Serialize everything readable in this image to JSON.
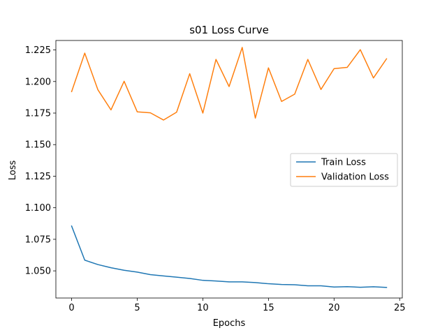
{
  "chart_data": {
    "type": "line",
    "title": "s01 Loss Curve",
    "xlabel": "Epochs",
    "ylabel": "Loss",
    "xlim": [
      -1.2,
      25.2
    ],
    "ylim": [
      1.0285,
      1.2325
    ],
    "x_ticks": [
      0,
      5,
      10,
      15,
      20,
      25
    ],
    "y_ticks": [
      1.05,
      1.075,
      1.1,
      1.125,
      1.15,
      1.175,
      1.2,
      1.225
    ],
    "y_tick_labels": [
      "1.050",
      "1.075",
      "1.100",
      "1.125",
      "1.150",
      "1.175",
      "1.200",
      "1.225"
    ],
    "grid": false,
    "legend_position": "center-right",
    "x": [
      0,
      1,
      2,
      3,
      4,
      5,
      6,
      7,
      8,
      9,
      10,
      11,
      12,
      13,
      14,
      15,
      16,
      17,
      18,
      19,
      20,
      21,
      22,
      23,
      24
    ],
    "series": [
      {
        "name": "Train Loss",
        "color": "#1f77b4",
        "values": [
          1.0855,
          1.0585,
          1.055,
          1.0525,
          1.0505,
          1.049,
          1.047,
          1.046,
          1.045,
          1.044,
          1.0425,
          1.042,
          1.0413,
          1.0413,
          1.0407,
          1.0398,
          1.0392,
          1.039,
          1.0382,
          1.0382,
          1.0372,
          1.0375,
          1.037,
          1.0374,
          1.0369
        ]
      },
      {
        "name": "Validation Loss",
        "color": "#ff7f0e",
        "values": [
          1.192,
          1.2225,
          1.1935,
          1.1775,
          1.2002,
          1.176,
          1.1752,
          1.1695,
          1.1757,
          1.2062,
          1.175,
          1.2175,
          1.196,
          1.227,
          1.171,
          1.2108,
          1.1842,
          1.19,
          1.2175,
          1.1937,
          1.2102,
          1.2112,
          1.2252,
          1.2028,
          1.218
        ]
      }
    ]
  }
}
